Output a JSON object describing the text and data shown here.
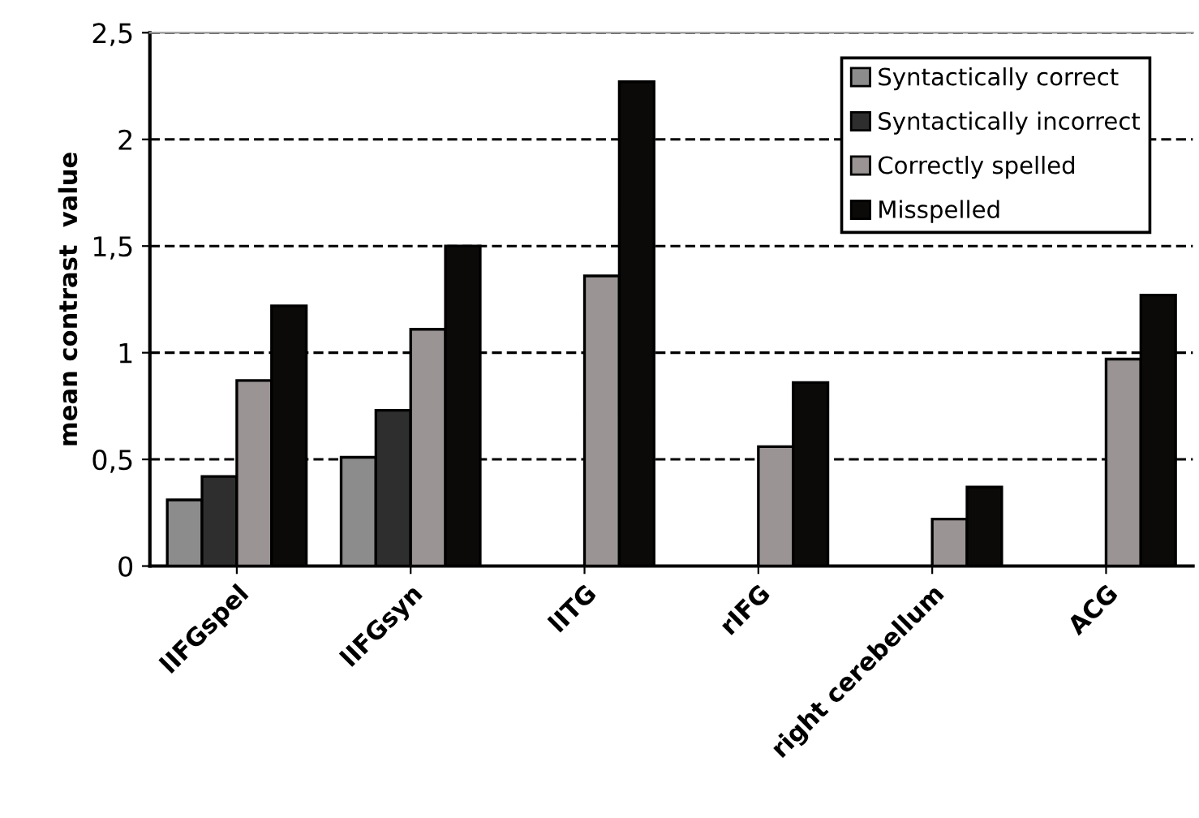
{
  "chart_data": {
    "type": "bar",
    "ylabel": "mean contrast  value",
    "categories": [
      "lIFGspel",
      "lIFGsyn",
      "lITG",
      "rIFG",
      "right cerebellum",
      "ACG"
    ],
    "series": [
      {
        "name": "Syntactically correct",
        "color": "#8c8c8c",
        "values": [
          0.31,
          0.51,
          null,
          null,
          null,
          null
        ]
      },
      {
        "name": "Syntactically incorrect",
        "color": "#2e2e2e",
        "values": [
          0.42,
          0.73,
          null,
          null,
          null,
          null
        ]
      },
      {
        "name": "Correctly spelled",
        "color": "#9a9594",
        "values": [
          0.87,
          1.11,
          1.36,
          0.56,
          0.22,
          0.97
        ]
      },
      {
        "name": "Misspelled",
        "color": "#0c0a09",
        "values": [
          1.22,
          1.5,
          2.27,
          0.86,
          0.37,
          1.27
        ]
      }
    ],
    "ylim": [
      0,
      2.5
    ],
    "yticks": [
      0,
      {
        "value": 0.5,
        "label": "0,5"
      },
      1,
      {
        "value": 1.5,
        "label": "1,5"
      },
      2,
      {
        "value": 2.5,
        "label": "2,5"
      }
    ],
    "grid": "y",
    "legend": "top right"
  }
}
